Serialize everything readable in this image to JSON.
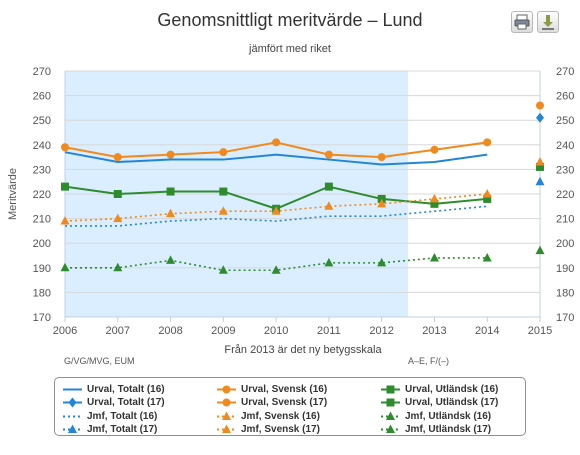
{
  "chart_data": {
    "type": "line",
    "title": "Genomsnittligt meritvärde – Lund",
    "subtitle": "jämfört med riket",
    "ylabel": "Meritvärde",
    "xlabel": "Från 2013 är det ny betygsskala",
    "ylim": [
      170,
      270
    ],
    "yticks": [
      170,
      180,
      190,
      200,
      210,
      220,
      230,
      240,
      250,
      260,
      270
    ],
    "categories": [
      "2006",
      "2007",
      "2008",
      "2009",
      "2010",
      "2011",
      "2012",
      "2013",
      "2014",
      "2015"
    ],
    "grid": true,
    "highlight_band": {
      "from": "2006",
      "to": "2012",
      "color": "#dbeeff"
    },
    "annotations": {
      "left": "G/VG/MVG, EUM",
      "right": "A–E, F/(–)"
    },
    "legend_position": "bottom",
    "series": [
      {
        "name": "Urval, Totalt (16)",
        "color": "#2285d9",
        "dash": "solid",
        "marker": "none",
        "values": [
          237,
          233,
          234,
          234,
          236,
          234,
          232,
          233,
          236,
          null
        ]
      },
      {
        "name": "Urval, Svensk (16)",
        "color": "#f08a1e",
        "dash": "solid",
        "marker": "circle",
        "values": [
          239,
          235,
          236,
          237,
          241,
          236,
          235,
          238,
          241,
          null
        ]
      },
      {
        "name": "Urval, Utländsk (16)",
        "color": "#2e8b2e",
        "dash": "solid",
        "marker": "square",
        "values": [
          223,
          220,
          221,
          221,
          214,
          223,
          218,
          216,
          218,
          null
        ]
      },
      {
        "name": "Urval, Totalt (17)",
        "color": "#2285d9",
        "dash": "solid",
        "marker": "diamond",
        "values": [
          null,
          null,
          null,
          null,
          null,
          null,
          null,
          null,
          null,
          251
        ]
      },
      {
        "name": "Urval, Svensk (17)",
        "color": "#f08a1e",
        "dash": "solid",
        "marker": "circle",
        "values": [
          null,
          null,
          null,
          null,
          null,
          null,
          null,
          null,
          null,
          256
        ]
      },
      {
        "name": "Urval, Utländsk (17)",
        "color": "#2e8b2e",
        "dash": "solid",
        "marker": "square",
        "values": [
          null,
          null,
          null,
          null,
          null,
          null,
          null,
          null,
          null,
          231
        ]
      },
      {
        "name": "Jmf, Totalt (16)",
        "color": "#2285d9",
        "dash": "dotted",
        "marker": "none",
        "values": [
          207,
          207,
          209,
          210,
          209,
          211,
          211,
          213,
          215,
          null
        ]
      },
      {
        "name": "Jmf, Svensk (16)",
        "color": "#f08a1e",
        "dash": "dotted",
        "marker": "triangle",
        "values": [
          209,
          210,
          212,
          213,
          213,
          215,
          216,
          218,
          220,
          null
        ]
      },
      {
        "name": "Jmf, Utländsk (16)",
        "color": "#2e8b2e",
        "dash": "dotted",
        "marker": "triangle",
        "values": [
          190,
          190,
          193,
          189,
          189,
          192,
          192,
          194,
          194,
          null
        ]
      },
      {
        "name": "Jmf, Totalt (17)",
        "color": "#2285d9",
        "dash": "dotted",
        "marker": "triangle",
        "values": [
          null,
          null,
          null,
          null,
          null,
          null,
          null,
          null,
          null,
          225
        ]
      },
      {
        "name": "Jmf, Svensk (17)",
        "color": "#f08a1e",
        "dash": "dotted",
        "marker": "triangle",
        "values": [
          null,
          null,
          null,
          null,
          null,
          null,
          null,
          null,
          null,
          233
        ]
      },
      {
        "name": "Jmf, Utländsk (17)",
        "color": "#2e8b2e",
        "dash": "dotted",
        "marker": "triangle",
        "values": [
          null,
          null,
          null,
          null,
          null,
          null,
          null,
          null,
          null,
          197
        ]
      }
    ],
    "legend_order": [
      "Urval, Totalt (16)",
      "Urval, Svensk (16)",
      "Urval, Utländsk (16)",
      "Urval, Totalt (17)",
      "Urval, Svensk (17)",
      "Urval, Utländsk (17)",
      "Jmf, Totalt (16)",
      "Jmf, Svensk (16)",
      "Jmf, Utländsk (16)",
      "Jmf, Totalt (17)",
      "Jmf, Svensk (17)",
      "Jmf, Utländsk (17)"
    ]
  },
  "toolbar": {
    "print_icon": "print-icon",
    "download_icon": "download-icon"
  }
}
